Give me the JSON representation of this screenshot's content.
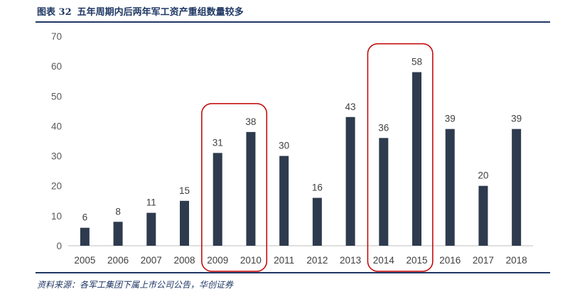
{
  "figure": {
    "label": "图表 32",
    "title": "五年周期内后两年军工资产重组数量较多",
    "source": "资料来源：各军工集团下属上市公司公告，华创证券"
  },
  "chart_data": {
    "type": "bar",
    "categories": [
      "2005",
      "2006",
      "2007",
      "2008",
      "2009",
      "2010",
      "2011",
      "2012",
      "2013",
      "2014",
      "2015",
      "2016",
      "2017",
      "2018"
    ],
    "values": [
      6,
      8,
      11,
      15,
      31,
      38,
      30,
      16,
      43,
      36,
      58,
      39,
      20,
      39
    ],
    "ylim": [
      0,
      70
    ],
    "yticks": [
      0,
      10,
      20,
      30,
      40,
      50,
      60,
      70
    ],
    "grid": false,
    "legend": "none",
    "highlight_groups": [
      [
        "2009",
        "2010"
      ],
      [
        "2014",
        "2015"
      ]
    ],
    "colors": {
      "bar": "#2e3b4e",
      "highlight": "#c00000",
      "axis_text": "#595959",
      "title": "#1f3864"
    }
  }
}
